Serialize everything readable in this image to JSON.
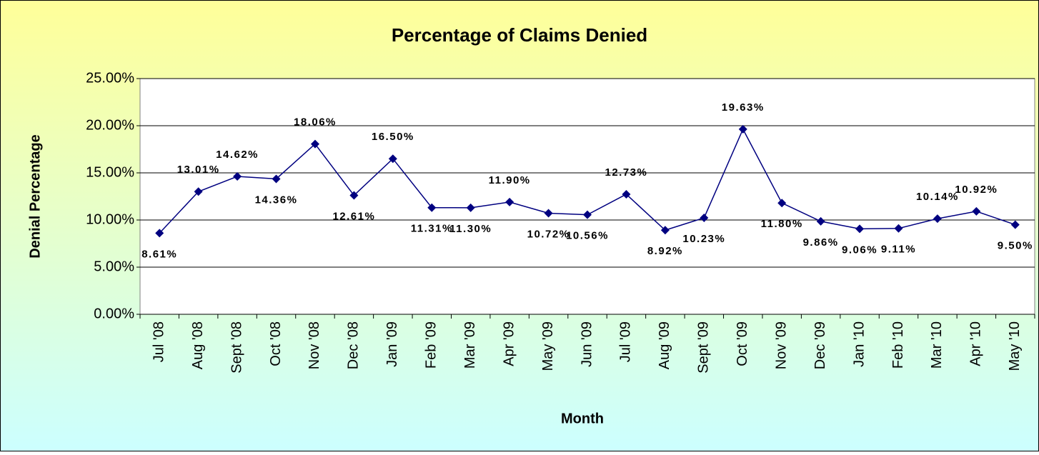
{
  "chart_data": {
    "type": "line",
    "title": "Percentage of Claims Denied",
    "x_label": "Month",
    "y_label": "Denial Percentage",
    "categories": [
      "Jul '08",
      "Aug '08",
      "Sept '08",
      "Oct '08",
      "Nov '08",
      "Dec '08",
      "Jan '09",
      "Feb '09",
      "Mar '09",
      "Apr '09",
      "May '09",
      "Jun '09",
      "Jul '09",
      "Aug '09",
      "Sept '09",
      "Oct '09",
      "Nov '09",
      "Dec '09",
      "Jan '10",
      "Feb '10",
      "Mar '10",
      "Apr '10",
      "May '10"
    ],
    "series": [
      {
        "name": "Denial Percentage",
        "color": "#000080",
        "values": [
          8.61,
          13.01,
          14.62,
          14.36,
          18.06,
          12.61,
          16.5,
          11.31,
          11.3,
          11.9,
          10.72,
          10.56,
          12.73,
          8.92,
          10.23,
          19.63,
          11.8,
          9.86,
          9.06,
          9.11,
          10.14,
          10.92,
          9.5
        ],
        "value_labels": [
          "8.61%",
          "13.01%",
          "14.62%",
          "14.36%",
          "18.06%",
          "12.61%",
          "16.50%",
          "11.31%",
          "11.30%",
          "11.90%",
          "10.72%",
          "10.56%",
          "12.73%",
          "8.92%",
          "10.23%",
          "19.63%",
          "11.80%",
          "9.86%",
          "9.06%",
          "9.11%",
          "10.14%",
          "10.92%",
          "9.50%"
        ]
      }
    ],
    "ylim": [
      0,
      25
    ],
    "yticks": [
      {
        "value": 0,
        "label": "0.00%"
      },
      {
        "value": 5,
        "label": "5.00%"
      },
      {
        "value": 10,
        "label": "10.00%"
      },
      {
        "value": 15,
        "label": "15.00%"
      },
      {
        "value": 20,
        "label": "20.00%"
      },
      {
        "value": 25,
        "label": "25.00%"
      }
    ],
    "grid": true
  }
}
